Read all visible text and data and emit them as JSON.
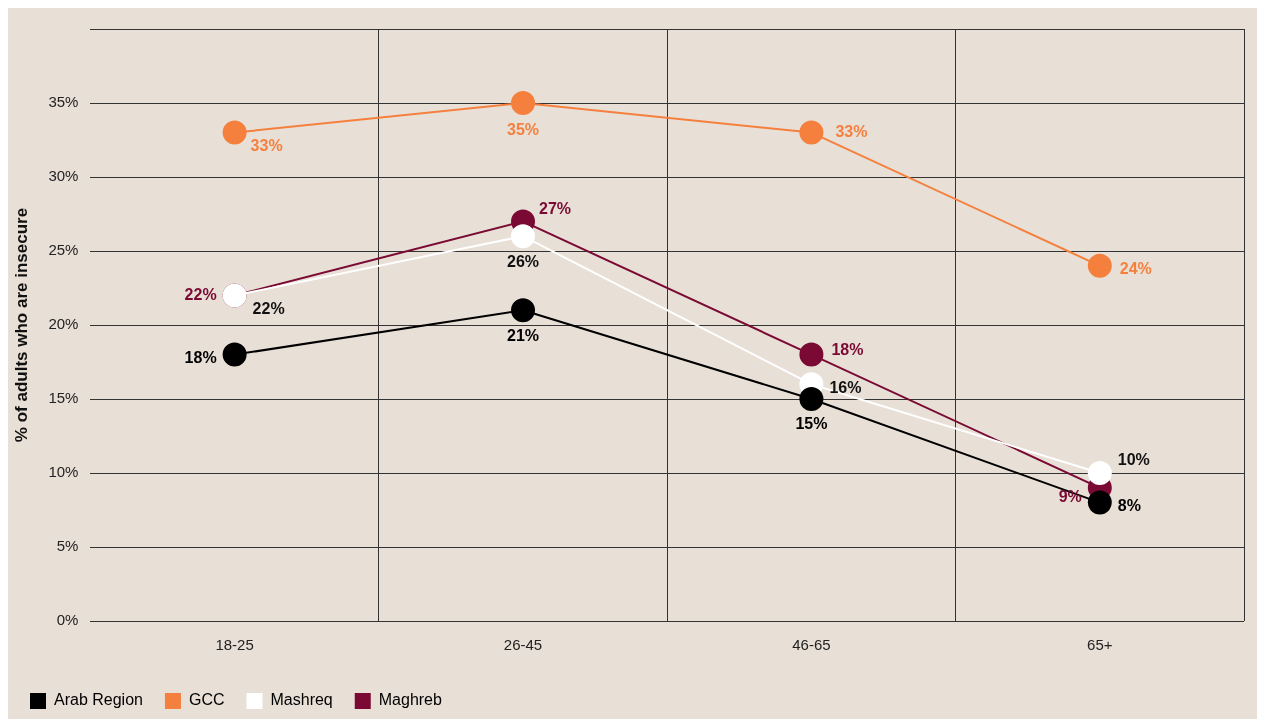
{
  "chart_data": {
    "type": "line",
    "ylabel": "% of adults who are insecure",
    "categories": [
      "18-25",
      "26-45",
      "46-65",
      "65+"
    ],
    "series": [
      {
        "name": "Arab Region",
        "color": "#000000",
        "values": [
          18,
          21,
          15,
          8
        ],
        "value_labels": [
          "18%",
          "21%",
          "15%",
          "8%"
        ]
      },
      {
        "name": "GCC",
        "color": "#f5803e",
        "values": [
          33,
          35,
          33,
          24
        ],
        "value_labels": [
          "33%",
          "35%",
          "33%",
          "24%"
        ]
      },
      {
        "name": "Mashreq",
        "color": "#ffffff",
        "values": [
          22,
          26,
          16,
          10
        ],
        "value_labels": [
          "22%",
          "26%",
          "16%",
          "10%"
        ]
      },
      {
        "name": "Maghreb",
        "color": "#7a0a33",
        "values": [
          22,
          27,
          18,
          9
        ],
        "value_labels": [
          "22%",
          "27%",
          "18%",
          "9%"
        ]
      }
    ],
    "ylim": [
      0,
      40
    ],
    "yticks": [
      {
        "value": 0,
        "label": "0%"
      },
      {
        "value": 5,
        "label": "5%"
      },
      {
        "value": 10,
        "label": "10%"
      },
      {
        "value": 15,
        "label": "15%"
      },
      {
        "value": 20,
        "label": "20%"
      },
      {
        "value": 25,
        "label": "25%"
      },
      {
        "value": 30,
        "label": "30%"
      },
      {
        "value": 35,
        "label": "35%"
      },
      {
        "value": 40,
        "label": null
      }
    ],
    "grid": true,
    "legend": "bottom left",
    "marker": "circle",
    "line_style": "solid"
  }
}
